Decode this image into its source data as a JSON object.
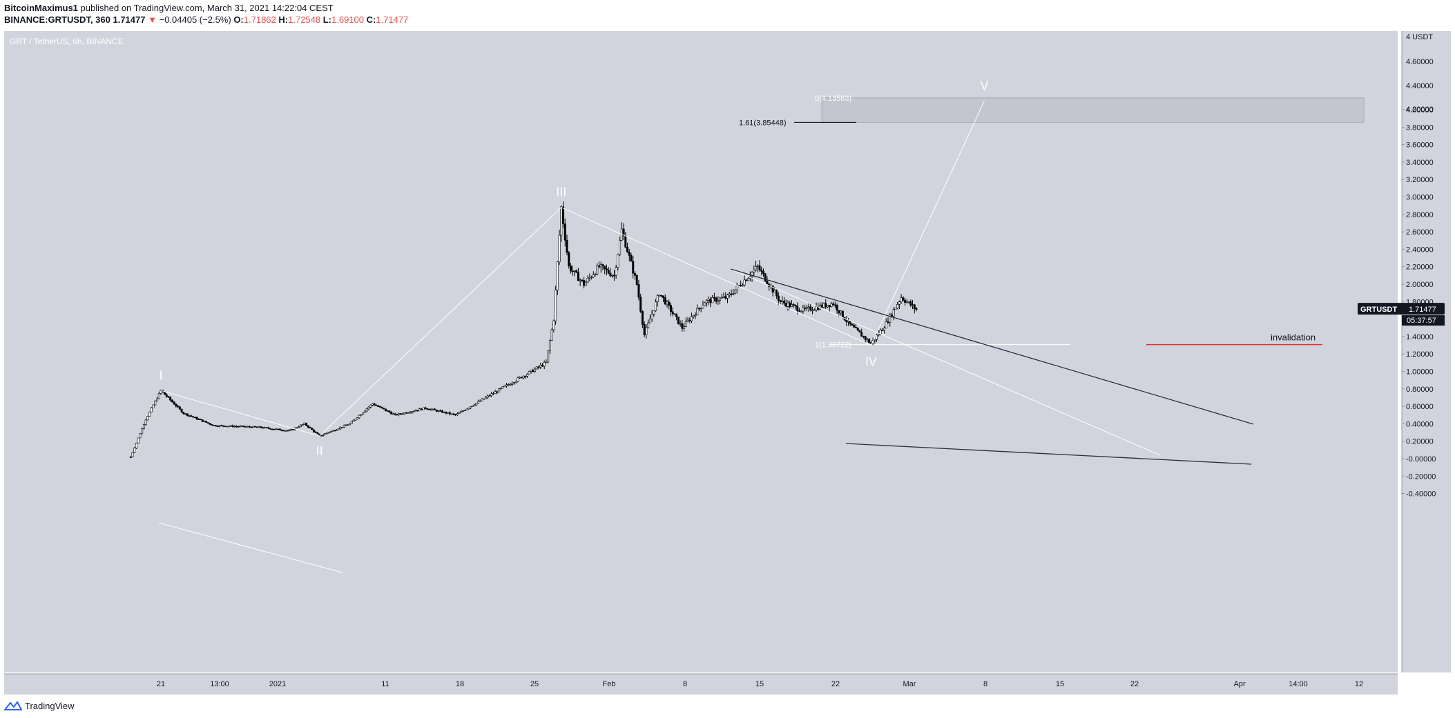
{
  "header": {
    "author": "BitcoinMaximus1",
    "published_text": "published on TradingView.com, March 31, 2021 14:22:04 CEST",
    "symbol": "BINANCE:GRTUSDT, 360",
    "last_price": "1.71477",
    "down_arrow": "▼",
    "change": "−0.04405 (−2.5%)",
    "o_label": "O:",
    "o_value": "1.71862",
    "h_label": "H:",
    "h_value": "1.72548",
    "l_label": "L:",
    "l_value": "1.69100",
    "c_label": "C:",
    "c_value": "1.71477"
  },
  "symbol_info": "GRT / TetherUS, 6h, BINANCE",
  "footer": {
    "brand": "TradingView"
  },
  "price_tag": {
    "ticker": "GRTUSDT",
    "price": "1.71477",
    "countdown": "05:37:57"
  },
  "colors": {
    "background": "#d1d4dc",
    "candle": "#000000",
    "wave_line": "#ffffff",
    "invalidation": "#e0312b",
    "target_box": "#c3c6ce"
  },
  "chart_data": {
    "type": "candlestick",
    "ylim": [
      -0.45,
      4.05
    ],
    "y_axis_unit": "USDT",
    "y_ticks": [
      "4.00000",
      "3.80000",
      "3.60000",
      "3.40000",
      "3.20000",
      "3.00000",
      "2.80000",
      "2.60000",
      "2.40000",
      "2.20000",
      "2.00000",
      "1.80000",
      "1.60000",
      "1.40000",
      "1.20000",
      "1.00000",
      "0.80000",
      "0.60000",
      "0.40000",
      "0.20000",
      "-0.00000",
      "-0.20000",
      "-0.40000"
    ],
    "y_top_labels": [
      "4 USDT",
      "4.60000",
      "4.40000",
      "4.20000"
    ],
    "x_ticks": [
      "21",
      "13:00",
      "2021",
      "11",
      "18",
      "25",
      "Feb",
      "8",
      "15",
      "22",
      "Mar",
      "8",
      "15",
      "22",
      "Apr",
      "14:00",
      "12"
    ],
    "price_path": [
      [
        "Dec 17",
        0.02
      ],
      [
        "Dec 19",
        0.45
      ],
      [
        "Dec 21",
        0.78
      ],
      [
        "Dec 24",
        0.52
      ],
      [
        "Dec 28",
        0.38
      ],
      [
        "Jan 3",
        0.36
      ],
      [
        "Jan 7",
        0.32
      ],
      [
        "Jan 9",
        0.4
      ],
      [
        "Jan 11",
        0.26
      ],
      [
        "Jan 15",
        0.4
      ],
      [
        "Jan 18",
        0.63
      ],
      [
        "Jan 21",
        0.5
      ],
      [
        "Jan 25",
        0.58
      ],
      [
        "Jan 29",
        0.5
      ],
      [
        "Feb 1",
        0.65
      ],
      [
        "Feb 4",
        0.8
      ],
      [
        "Feb 7",
        0.95
      ],
      [
        "Feb 10",
        1.1
      ],
      [
        "Feb 11",
        1.6
      ],
      [
        "Feb 12",
        2.88
      ],
      [
        "Feb 13",
        2.2
      ],
      [
        "Feb 15",
        2.0
      ],
      [
        "Feb 17",
        2.2
      ],
      [
        "Feb 19",
        2.1
      ],
      [
        "Feb 20",
        2.62
      ],
      [
        "Feb 22",
        2.0
      ],
      [
        "Feb 23",
        1.42
      ],
      [
        "Feb 25",
        1.9
      ],
      [
        "Feb 28",
        1.5
      ],
      [
        "Mar 3",
        1.8
      ],
      [
        "Mar 6",
        1.85
      ],
      [
        "Mar 10",
        2.2
      ],
      [
        "Mar 13",
        1.8
      ],
      [
        "Mar 16",
        1.7
      ],
      [
        "Mar 20",
        1.78
      ],
      [
        "Mar 22",
        1.55
      ],
      [
        "Mar 25",
        1.32
      ],
      [
        "Mar 27",
        1.55
      ],
      [
        "Mar 29",
        1.85
      ],
      [
        "Mar 31",
        1.71
      ]
    ],
    "last_price": 1.71477,
    "annotations": {
      "waves": [
        {
          "label": "I",
          "date": "Dec 21",
          "price": 0.78
        },
        {
          "label": "II",
          "date": "Jan 11",
          "price": 0.26
        },
        {
          "label": "III",
          "date": "Feb 12",
          "price": 2.88
        },
        {
          "label": "IV",
          "date": "Mar 25",
          "price": 1.3
        },
        {
          "label": "V",
          "date": "Apr 9",
          "price": 4.1
        }
      ],
      "fib_labels": [
        {
          "text": "0(4.13563)",
          "price": 4.13563
        },
        {
          "text": "1.61(3.85448)",
          "price": 3.85448
        },
        {
          "text": "1(1.30722)",
          "price": 1.30722
        }
      ],
      "target_zone": [
        3.85448,
        4.13563
      ],
      "invalidation_label": "invalidation",
      "invalidation_level": 1.30722
    }
  }
}
